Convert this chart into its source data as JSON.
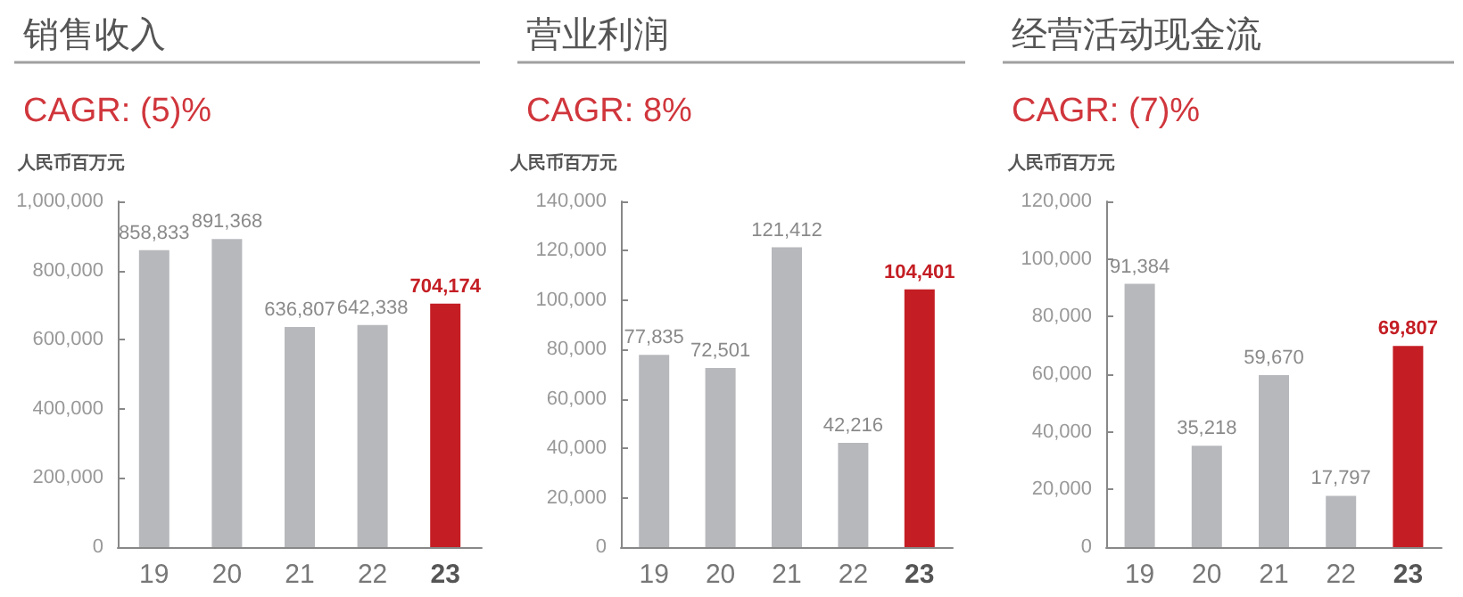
{
  "chart_data": [
    {
      "type": "bar",
      "title": "销售收入",
      "subtitle": "CAGR: (5)%",
      "ylabel": "人民币百万元",
      "categories": [
        "19",
        "20",
        "21",
        "22",
        "23"
      ],
      "values": [
        858833,
        891368,
        636807,
        642338,
        704174
      ],
      "value_labels": [
        "858,833",
        "891,368",
        "636,807",
        "642,338",
        "704,174"
      ],
      "colors": [
        "#b7b8bc",
        "#b7b8bc",
        "#b7b8bc",
        "#b7b8bc",
        "#c41e24"
      ],
      "ylim": [
        0,
        1000000
      ],
      "yticks": [
        {
          "value": 0,
          "label": "0"
        },
        {
          "value": 200000,
          "label": "200,000"
        },
        {
          "value": 400000,
          "label": "400,000"
        },
        {
          "value": 600000,
          "label": "600,000"
        },
        {
          "value": 800000,
          "label": "800,000"
        },
        {
          "value": 1000000,
          "label": "1,000,000"
        }
      ],
      "grid": false
    },
    {
      "type": "bar",
      "title": "营业利润",
      "subtitle": "CAGR: 8%",
      "ylabel": "人民币百万元",
      "categories": [
        "19",
        "20",
        "21",
        "22",
        "23"
      ],
      "values": [
        77835,
        72501,
        121412,
        42216,
        104401
      ],
      "value_labels": [
        "77,835",
        "72,501",
        "121,412",
        "42,216",
        "104,401"
      ],
      "colors": [
        "#b7b8bc",
        "#b7b8bc",
        "#b7b8bc",
        "#b7b8bc",
        "#c41e24"
      ],
      "ylim": [
        0,
        140000
      ],
      "yticks": [
        {
          "value": 0,
          "label": "0"
        },
        {
          "value": 20000,
          "label": "20,000"
        },
        {
          "value": 40000,
          "label": "40,000"
        },
        {
          "value": 60000,
          "label": "60,000"
        },
        {
          "value": 80000,
          "label": "80,000"
        },
        {
          "value": 100000,
          "label": "100,000"
        },
        {
          "value": 120000,
          "label": "120,000"
        },
        {
          "value": 140000,
          "label": "140,000"
        }
      ],
      "grid": false
    },
    {
      "type": "bar",
      "title": "经营活动现金流",
      "subtitle": "CAGR: (7)%",
      "ylabel": "人民币百万元",
      "categories": [
        "19",
        "20",
        "21",
        "22",
        "23"
      ],
      "values": [
        91384,
        35218,
        59670,
        17797,
        69807
      ],
      "value_labels": [
        "91,384",
        "35,218",
        "59,670",
        "17,797",
        "69,807"
      ],
      "colors": [
        "#b7b8bc",
        "#b7b8bc",
        "#b7b8bc",
        "#b7b8bc",
        "#c41e24"
      ],
      "ylim": [
        0,
        120000
      ],
      "yticks": [
        {
          "value": 0,
          "label": "0"
        },
        {
          "value": 20000,
          "label": "20,000"
        },
        {
          "value": 40000,
          "label": "40,000"
        },
        {
          "value": 60000,
          "label": "60,000"
        },
        {
          "value": 80000,
          "label": "80,000"
        },
        {
          "value": 100000,
          "label": "100,000"
        },
        {
          "value": 120000,
          "label": "120,000"
        }
      ],
      "grid": false
    }
  ]
}
